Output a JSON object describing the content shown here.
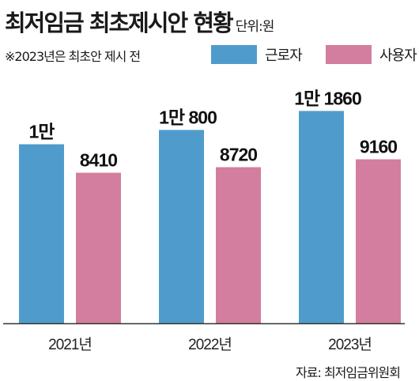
{
  "header": {
    "title": "최저임금 최초제시안 현황",
    "unit": "단위:원",
    "note": "※2023년은 최초안 제시 전"
  },
  "legend": {
    "workers": "근로자",
    "employers": "사용자"
  },
  "colors": {
    "workers": "#4f9ccc",
    "employers": "#d37e9e",
    "axis": "#333333"
  },
  "chart_data": {
    "type": "bar",
    "categories": [
      "2021년",
      "2022년",
      "2023년"
    ],
    "series": [
      {
        "name": "근로자",
        "values": [
          10000,
          10800,
          11860
        ],
        "labels": [
          "1만",
          "1만 800",
          "1만 1860"
        ]
      },
      {
        "name": "사용자",
        "values": [
          8410,
          8720,
          9160
        ],
        "labels": [
          "8410",
          "8720",
          "9160"
        ]
      }
    ],
    "title": "최저임금 최초제시안 현황",
    "ylabel": "단위:원",
    "legend": "top-right",
    "grid": false
  },
  "source": "자료: 최저임금위원회"
}
